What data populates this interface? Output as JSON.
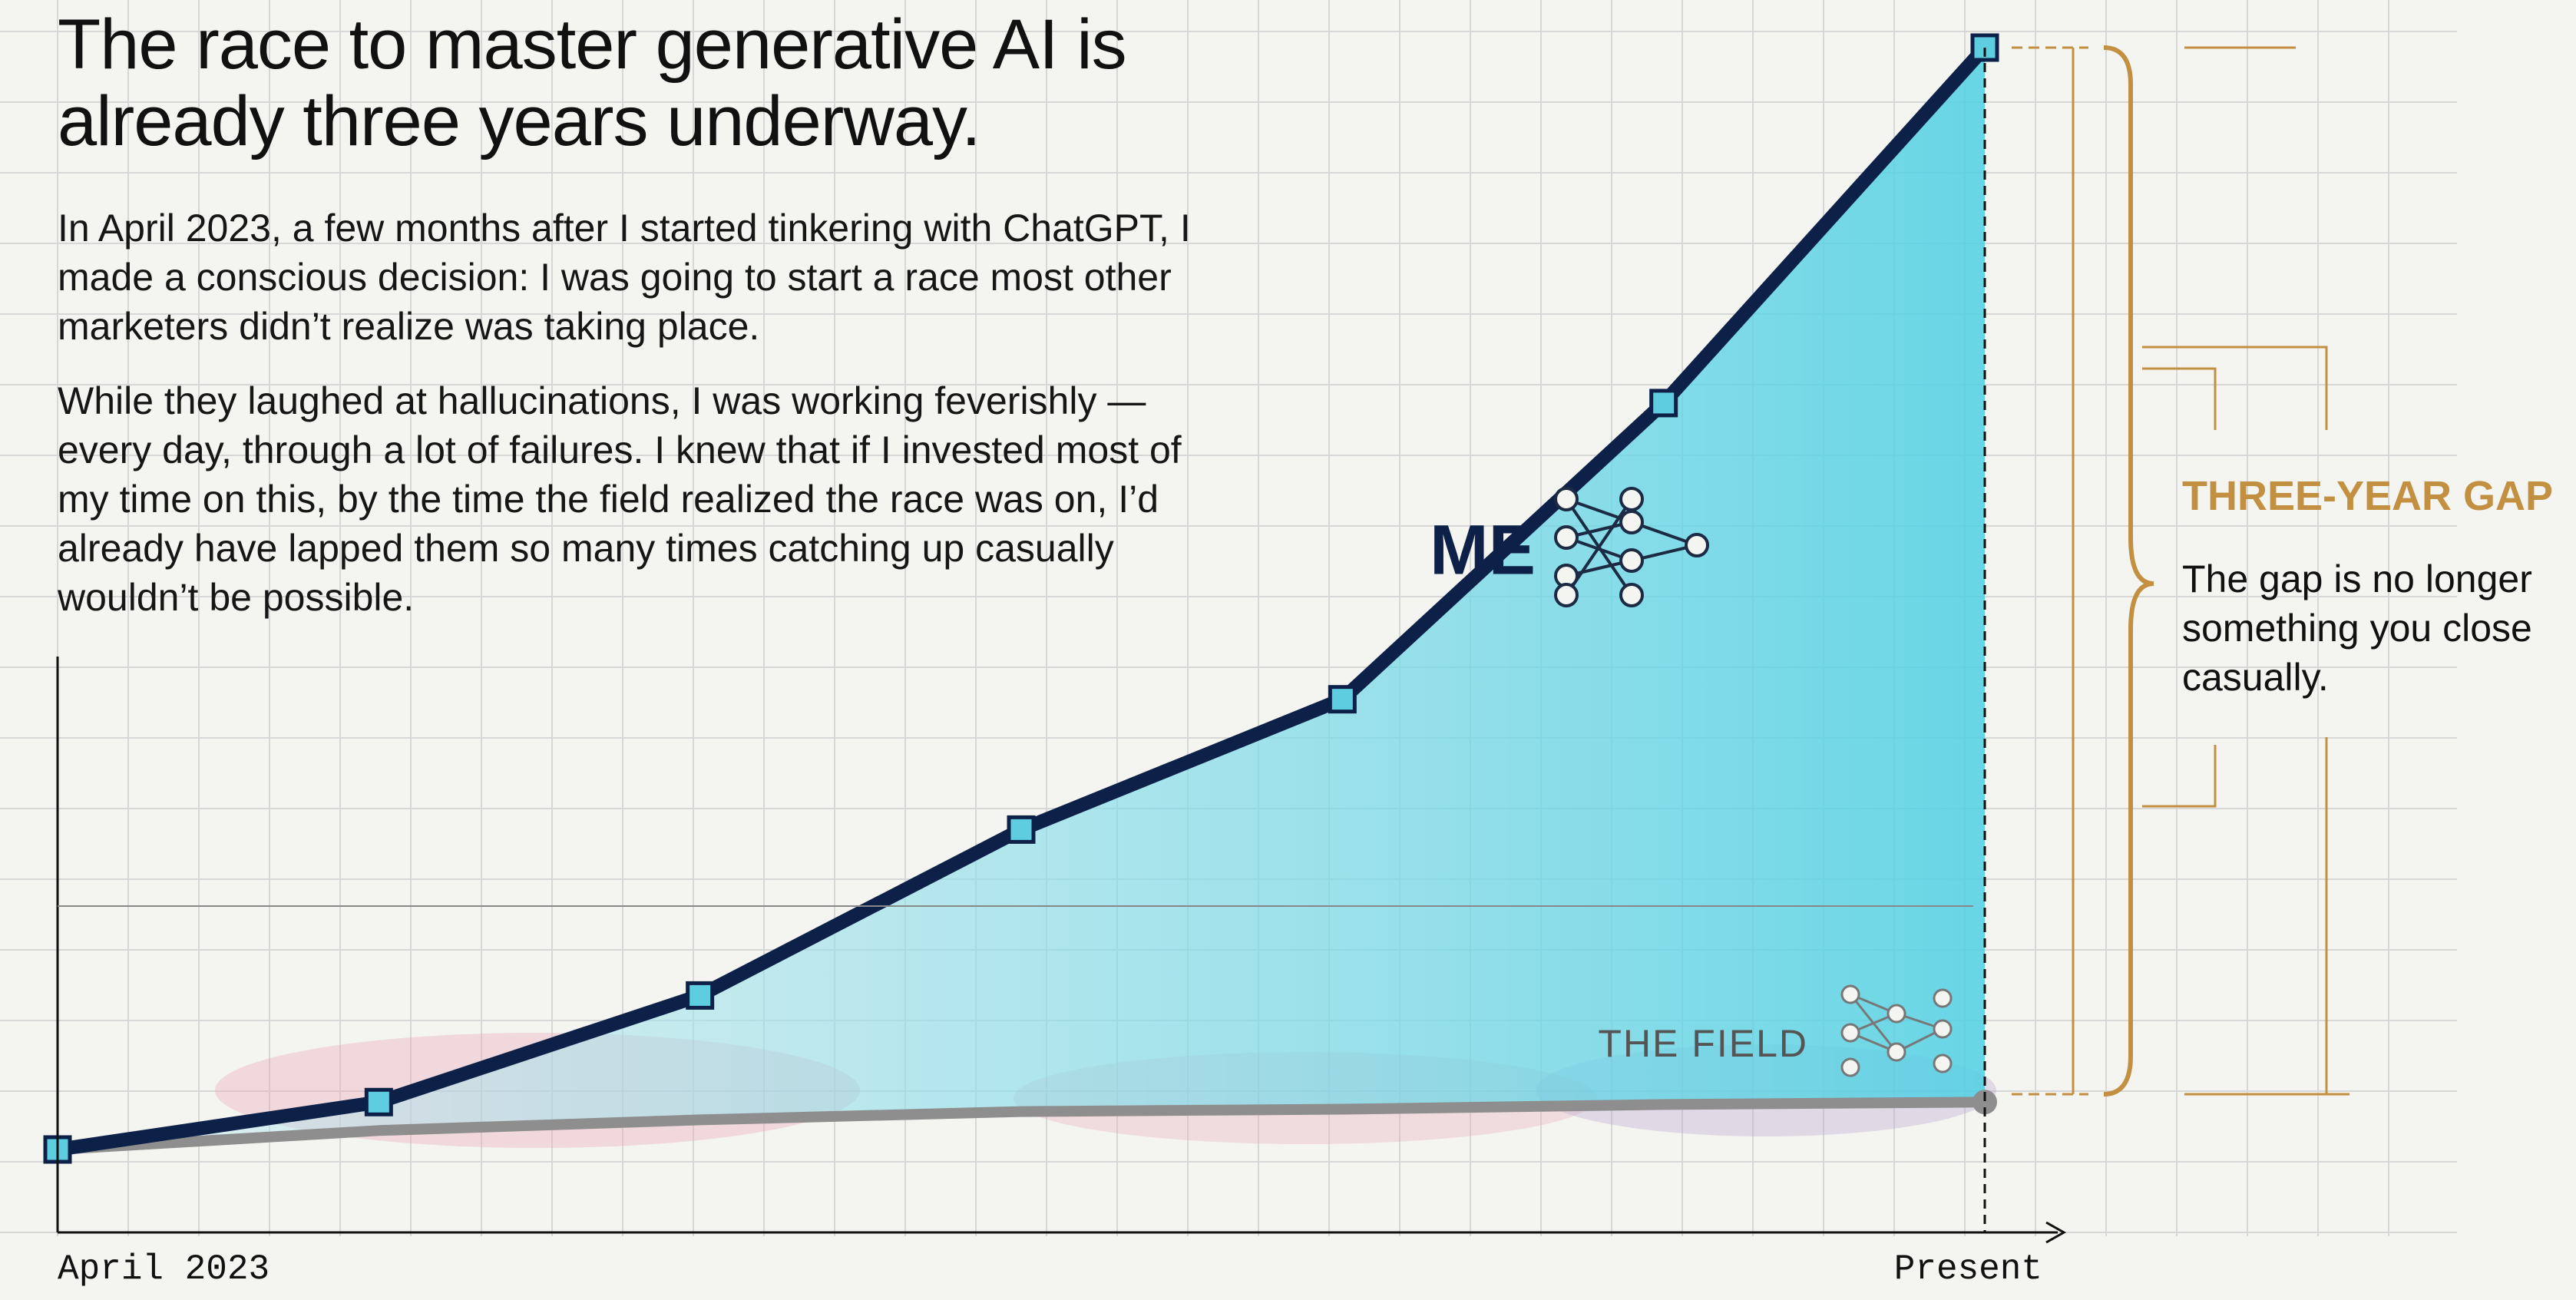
{
  "chart_data": {
    "type": "line",
    "title": "The race to master generative AI is already three years underway.",
    "paragraphs": [
      "In April 2023, a few months after I started tinkering with ChatGPT, I made a conscious decision: I was going to start a race most other marketers didn’t realize was taking place.",
      "While they laughed at hallucinations, I was working feverishly — every day, through a lot of failures. I knew that if I invested most of my time on this, by the time the field realized the race was on, I’d already have lapped them so many times catching up casually wouldn’t be possible."
    ],
    "categories": [
      "April 2023",
      null,
      null,
      null,
      null,
      null,
      "Present"
    ],
    "series": [
      {
        "name": "ME",
        "color": "#0d2148",
        "values": [
          7,
          11,
          20,
          34,
          45,
          70,
          100
        ]
      },
      {
        "name": "THE FIELD",
        "color": "#8e8e8e",
        "values": [
          7,
          8.6,
          9.5,
          10.2,
          10.4,
          10.8,
          11
        ]
      }
    ],
    "ylim": [
      0,
      100
    ],
    "grid": true,
    "gap_title": "THREE-YEAR GAP",
    "gap_text": "The gap is no longer something you close casually."
  }
}
